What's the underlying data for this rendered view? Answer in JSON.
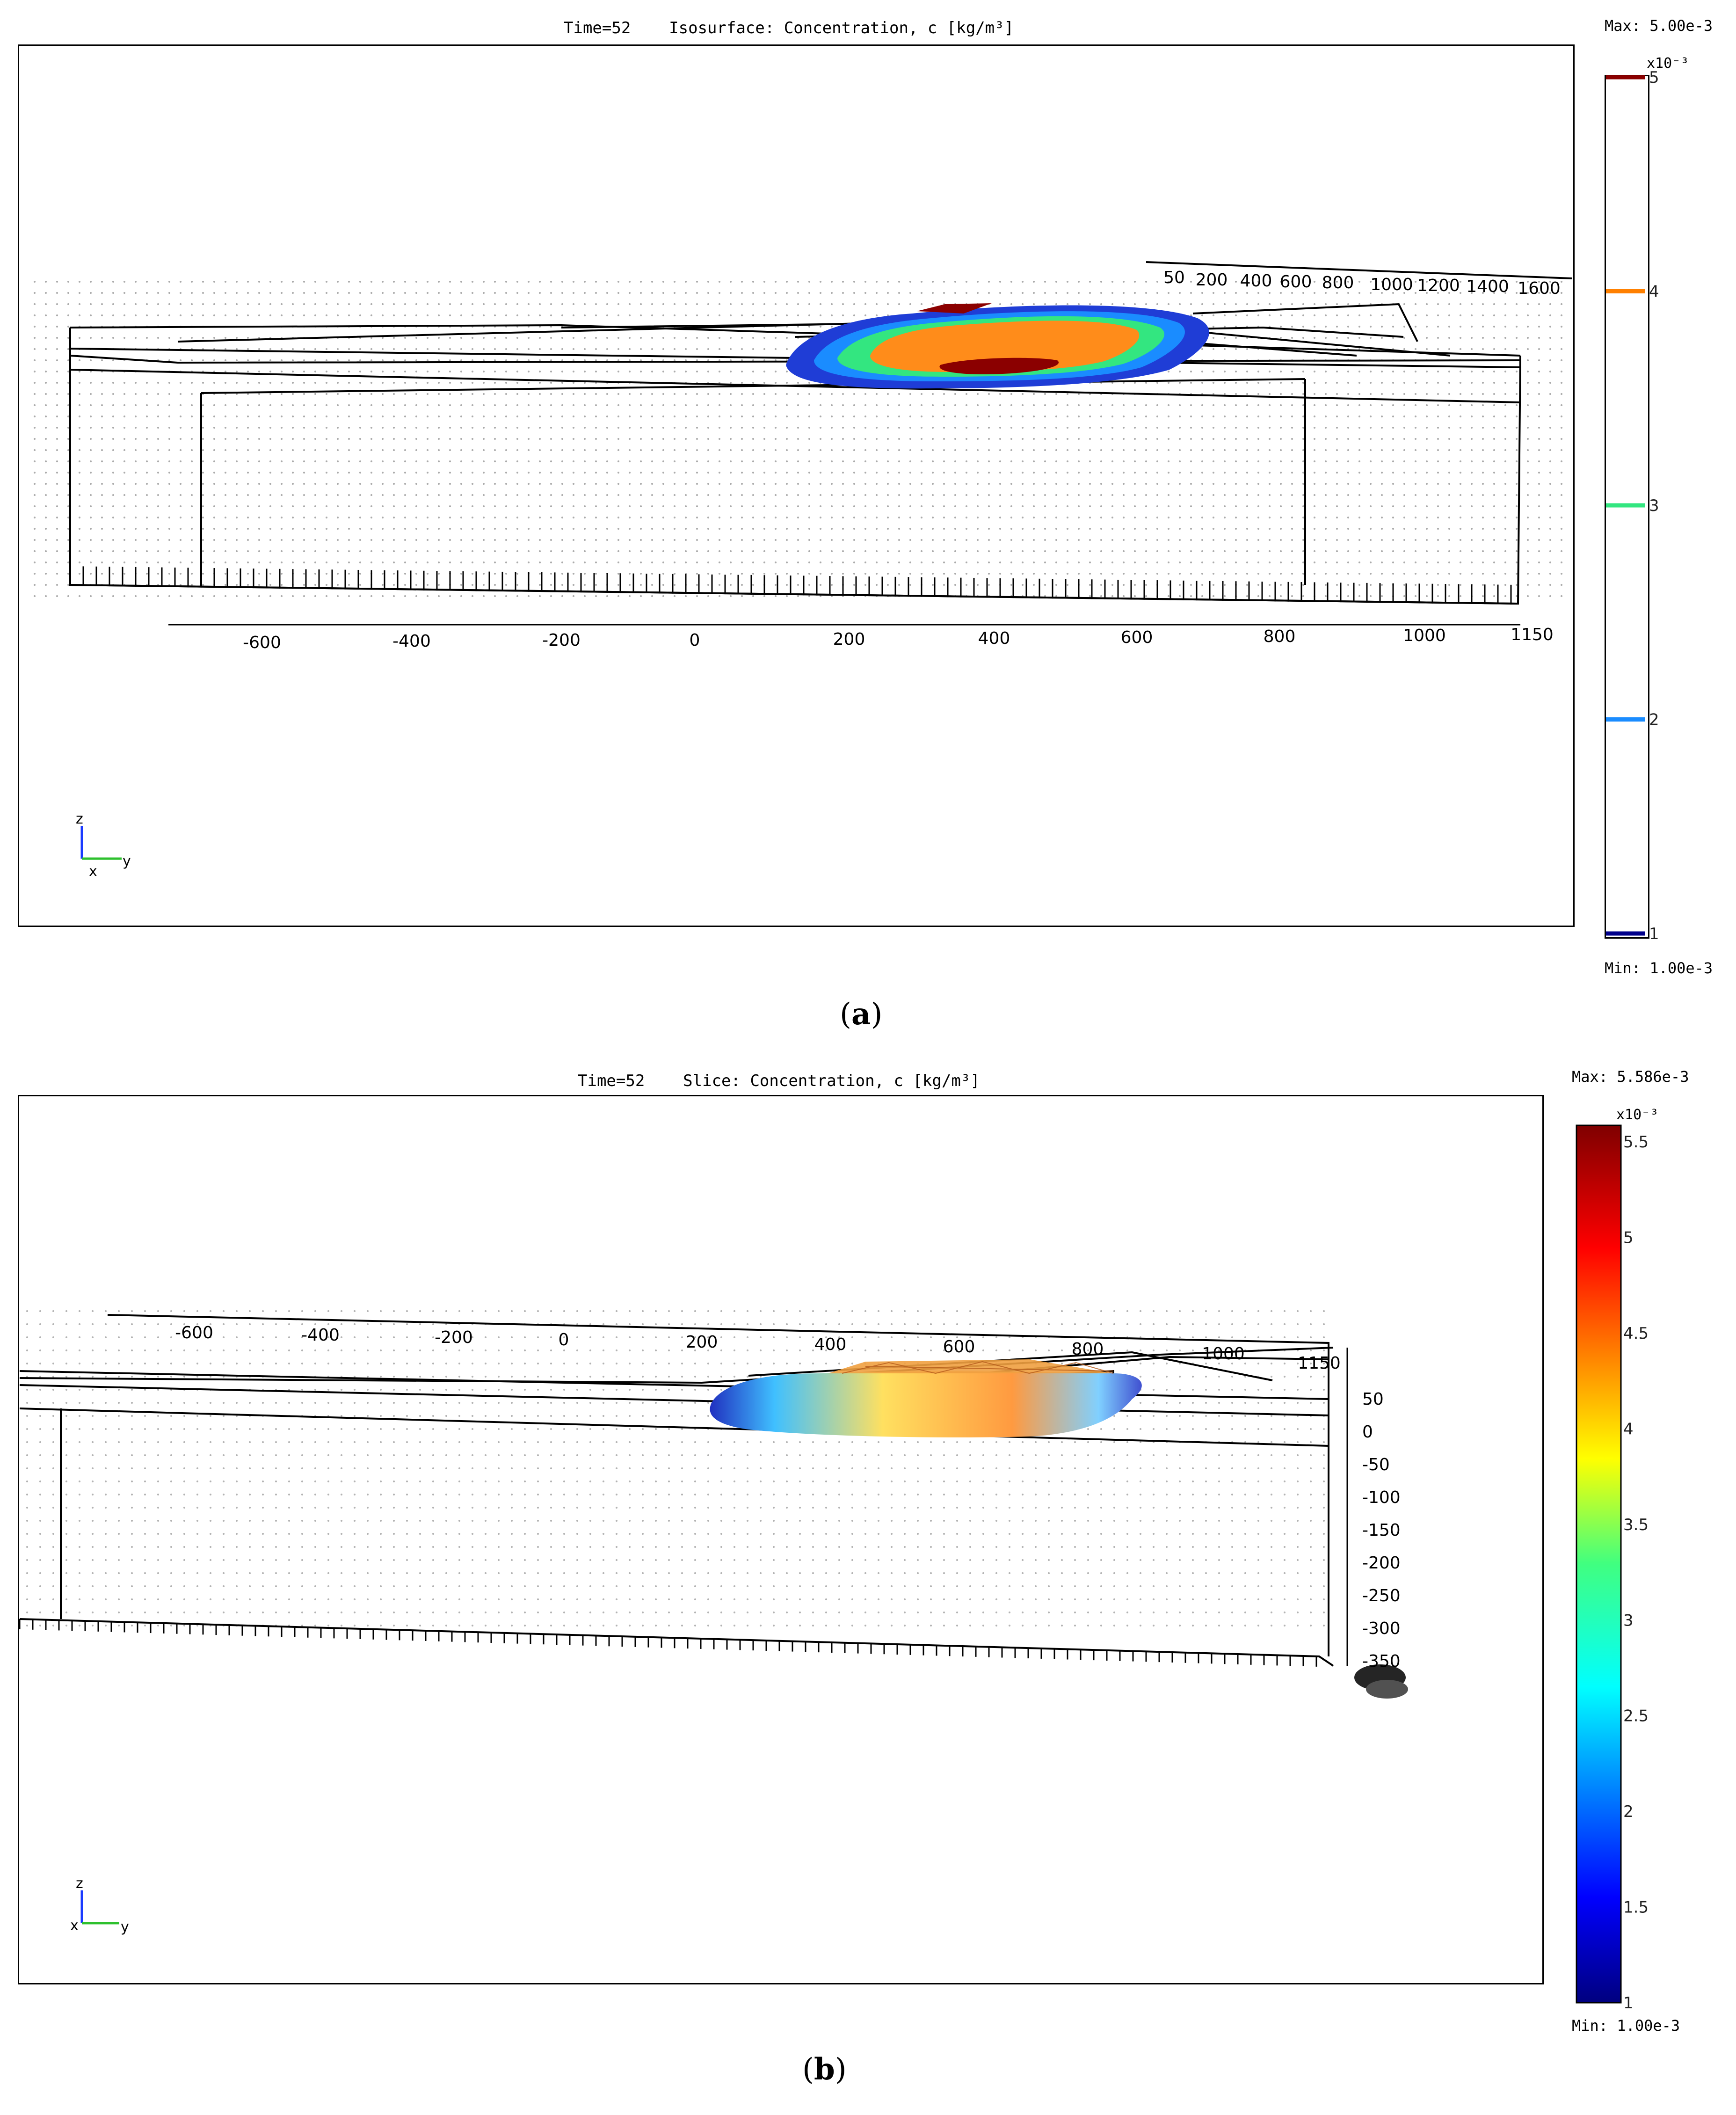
{
  "panel_a": {
    "title": "Time=52    Isosurface: Concentration, c [kg/m³]",
    "max_label": "Max: 5.00e-3",
    "min_label": "Min: 1.00e-3",
    "scale_exp": "x10⁻³",
    "caption_letter": "a",
    "legend_ticks": [
      "5",
      "4",
      "3",
      "2",
      "1"
    ],
    "legend_colors": [
      "#8b0000",
      "#ff8000",
      "#33e680",
      "#1a8cff",
      "#00008b"
    ],
    "axis_ticks_y": [
      "-600",
      "-400",
      "-200",
      "0",
      "200",
      "400",
      "600",
      "800",
      "1000",
      "1150"
    ],
    "axis_ticks_x": [
      "50",
      "200",
      "400",
      "600",
      "800",
      "1000",
      "1200",
      "1400",
      "1600"
    ],
    "triad": {
      "z": "z",
      "x": "x",
      "y": "y"
    }
  },
  "panel_b": {
    "title": "Time=52    Slice: Concentration, c [kg/m³]",
    "max_label": "Max: 5.586e-3",
    "min_label": "Min: 1.00e-3",
    "scale_exp": "x10⁻³",
    "caption_letter": "b",
    "legend_ticks": [
      "5.5",
      "5",
      "4.5",
      "4",
      "3.5",
      "3",
      "2.5",
      "2",
      "1.5",
      "1"
    ],
    "axis_ticks_y": [
      "-600",
      "-400",
      "-200",
      "0",
      "200",
      "400",
      "600",
      "800",
      "1000",
      "1150"
    ],
    "axis_ticks_z": [
      "50",
      "0",
      "-50",
      "-100",
      "-150",
      "-200",
      "-250",
      "-300",
      "-350"
    ],
    "triad": {
      "z": "z",
      "x": "x",
      "y": "y"
    }
  }
}
